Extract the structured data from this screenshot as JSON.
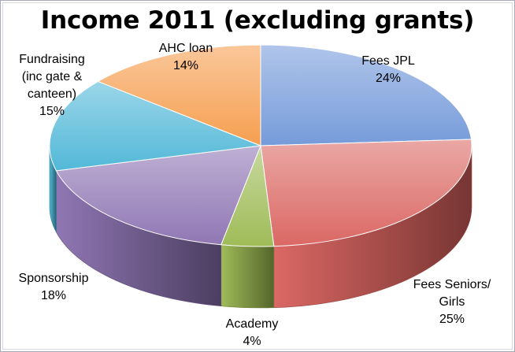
{
  "chart_data": {
    "type": "pie",
    "title": "Income 2011 (excluding grants)",
    "style": "3d",
    "legend": "none",
    "slices": [
      {
        "label": "Fees JPL",
        "value": 24,
        "percent_label": "24%",
        "color": "#6f96d8"
      },
      {
        "label": "Fees Seniors/ Girls",
        "value": 25,
        "percent_label": "25%",
        "color": "#d9605c"
      },
      {
        "label": "Academy",
        "value": 4,
        "percent_label": "4%",
        "color": "#9ab84f"
      },
      {
        "label": "Sponsorship",
        "value": 18,
        "percent_label": "18%",
        "color": "#8a70b0"
      },
      {
        "label": "Fundraising (inc gate & canteen)",
        "value": 15,
        "percent_label": "15%",
        "color": "#49b4d6"
      },
      {
        "label": "AHC loan",
        "value": 14,
        "percent_label": "14%",
        "color": "#f59a47"
      }
    ]
  }
}
